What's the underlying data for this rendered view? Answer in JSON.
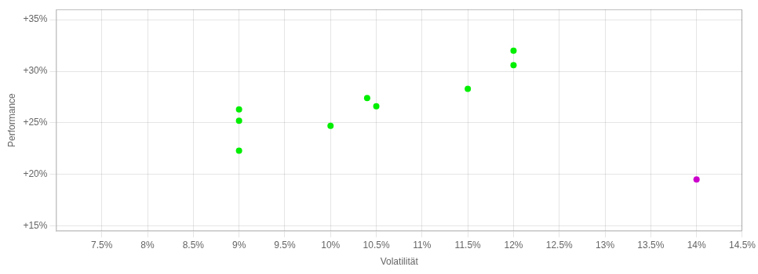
{
  "chart_data": {
    "type": "scatter",
    "xlabel": "Volatilität",
    "ylabel": "Performance",
    "xlim": [
      0.07,
      0.145
    ],
    "ylim": [
      0.145,
      0.36
    ],
    "xticks": [
      {
        "value": 0.075,
        "label": "7.5%"
      },
      {
        "value": 0.08,
        "label": "8%"
      },
      {
        "value": 0.085,
        "label": "8.5%"
      },
      {
        "value": 0.09,
        "label": "9%"
      },
      {
        "value": 0.095,
        "label": "9.5%"
      },
      {
        "value": 0.1,
        "label": "10%"
      },
      {
        "value": 0.105,
        "label": "10.5%"
      },
      {
        "value": 0.11,
        "label": "11%"
      },
      {
        "value": 0.115,
        "label": "11.5%"
      },
      {
        "value": 0.12,
        "label": "12%"
      },
      {
        "value": 0.125,
        "label": "12.5%"
      },
      {
        "value": 0.13,
        "label": "13%"
      },
      {
        "value": 0.135,
        "label": "13.5%"
      },
      {
        "value": 0.14,
        "label": "14%"
      },
      {
        "value": 0.145,
        "label": "14.5%"
      }
    ],
    "yticks": [
      {
        "value": 0.15,
        "label": "+15%"
      },
      {
        "value": 0.2,
        "label": "+20%"
      },
      {
        "value": 0.25,
        "label": "+25%"
      },
      {
        "value": 0.3,
        "label": "+30%"
      },
      {
        "value": 0.35,
        "label": "+35%"
      }
    ],
    "grid": true,
    "series": [
      {
        "color": "#00ee00",
        "x": [
          0.09,
          0.09,
          0.09,
          0.1,
          0.104,
          0.105,
          0.115,
          0.12,
          0.12
        ],
        "values": [
          0.223,
          0.252,
          0.263,
          0.247,
          0.274,
          0.266,
          0.283,
          0.306,
          0.32
        ]
      },
      {
        "color": "#cc00cc",
        "x": [
          0.14
        ],
        "values": [
          0.195
        ]
      }
    ]
  }
}
